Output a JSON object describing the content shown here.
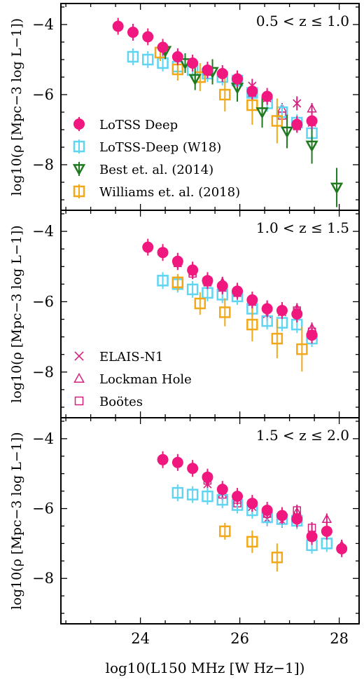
{
  "chart_data": {
    "type": "scatter",
    "x_label": "log10(L150 MHz [W Hz−1])",
    "y_label": "log10(ρ [Mpc−3 log L−1])",
    "xlim": [
      22.4,
      28.4
    ],
    "ylim": [
      -9.3,
      -3.4
    ],
    "x_ticks": [
      "24",
      "26",
      "28"
    ],
    "y_ticks": [
      "−4",
      "−6",
      "−8"
    ],
    "colors": {
      "lotss_deep": "#f0187f",
      "w18": "#5fd5f3",
      "best": "#1f7a1f",
      "williams": "#f2a818",
      "fields": "#d6207f"
    },
    "legend_series": [
      {
        "name": "LoTSS Deep",
        "marker": "filled-circle"
      },
      {
        "name": "LoTSS-Deep (W18)",
        "marker": "open-square"
      },
      {
        "name": "Best et. al. (2014)",
        "marker": "open-triangle-down"
      },
      {
        "name": "Williams et. al. (2018)",
        "marker": "open-square"
      }
    ],
    "legend_fields": [
      {
        "name": "ELAIS-N1",
        "marker": "cross"
      },
      {
        "name": "Lockman Hole",
        "marker": "open-triangle-up"
      },
      {
        "name": "Boötes",
        "marker": "open-square"
      }
    ],
    "panels": [
      {
        "z_label": "0.5  < z  ≤  1.0",
        "lotss_deep": [
          [
            23.55,
            -4.05
          ],
          [
            23.85,
            -4.22
          ],
          [
            24.15,
            -4.35
          ],
          [
            24.45,
            -4.65
          ],
          [
            24.75,
            -4.92
          ],
          [
            25.05,
            -5.1
          ],
          [
            25.35,
            -5.3
          ],
          [
            25.65,
            -5.4
          ],
          [
            25.95,
            -5.55
          ],
          [
            26.25,
            -5.9
          ],
          [
            26.55,
            -6.05
          ],
          [
            27.15,
            -6.85
          ],
          [
            27.45,
            -6.75
          ]
        ],
        "w18": [
          [
            23.85,
            -4.92
          ],
          [
            24.15,
            -5.0
          ],
          [
            24.45,
            -5.1
          ],
          [
            24.75,
            -5.2
          ],
          [
            25.05,
            -5.3
          ],
          [
            25.35,
            -5.4
          ],
          [
            25.65,
            -5.5
          ],
          [
            25.95,
            -5.6
          ],
          [
            26.25,
            -5.95
          ],
          [
            26.55,
            -6.25
          ],
          [
            26.85,
            -6.5
          ],
          [
            27.15,
            -6.8
          ],
          [
            27.45,
            -7.1
          ]
        ],
        "best": [
          [
            24.5,
            -4.75
          ],
          [
            24.9,
            -5.1
          ],
          [
            25.1,
            -5.55
          ],
          [
            25.45,
            -5.35
          ],
          [
            25.95,
            -5.8
          ],
          [
            26.45,
            -6.5
          ],
          [
            26.95,
            -7.05
          ],
          [
            27.45,
            -7.45
          ],
          [
            27.95,
            -8.65
          ]
        ],
        "williams": [
          [
            24.4,
            -4.8
          ],
          [
            24.75,
            -5.28
          ],
          [
            25.2,
            -5.5
          ],
          [
            25.7,
            -6.0
          ],
          [
            26.25,
            -6.3
          ],
          [
            26.75,
            -6.75
          ]
        ],
        "elais": [
          [
            24.75,
            -4.95
          ],
          [
            25.35,
            -5.3
          ],
          [
            25.95,
            -5.6
          ],
          [
            26.25,
            -5.75
          ],
          [
            26.55,
            -6.1
          ],
          [
            27.15,
            -6.25
          ],
          [
            27.45,
            -6.8
          ]
        ],
        "lockman": [
          [
            24.75,
            -4.9
          ],
          [
            25.35,
            -5.3
          ],
          [
            25.95,
            -5.55
          ],
          [
            26.25,
            -5.85
          ],
          [
            26.85,
            -6.4
          ],
          [
            27.45,
            -6.4
          ]
        ],
        "bootes": [
          [
            24.75,
            -4.95
          ],
          [
            25.35,
            -5.35
          ],
          [
            25.95,
            -5.65
          ],
          [
            26.25,
            -5.95
          ],
          [
            26.85,
            -6.6
          ],
          [
            27.15,
            -6.9
          ]
        ]
      },
      {
        "z_label": "1.0  < z  ≤  1.5",
        "lotss_deep": [
          [
            24.15,
            -4.45
          ],
          [
            24.45,
            -4.6
          ],
          [
            24.75,
            -4.85
          ],
          [
            25.05,
            -5.1
          ],
          [
            25.35,
            -5.4
          ],
          [
            25.65,
            -5.55
          ],
          [
            25.95,
            -5.7
          ],
          [
            26.25,
            -5.95
          ],
          [
            26.55,
            -6.2
          ],
          [
            26.85,
            -6.25
          ],
          [
            27.15,
            -6.35
          ],
          [
            27.45,
            -6.95
          ]
        ],
        "w18": [
          [
            24.45,
            -5.4
          ],
          [
            24.75,
            -5.5
          ],
          [
            25.05,
            -5.65
          ],
          [
            25.35,
            -5.75
          ],
          [
            25.65,
            -5.8
          ],
          [
            25.95,
            -5.85
          ],
          [
            26.25,
            -6.2
          ],
          [
            26.55,
            -6.55
          ],
          [
            26.85,
            -6.6
          ],
          [
            27.15,
            -6.65
          ],
          [
            27.45,
            -7.05
          ]
        ],
        "best": [],
        "williams": [
          [
            24.75,
            -5.45
          ],
          [
            25.2,
            -6.05
          ],
          [
            25.7,
            -6.3
          ],
          [
            26.25,
            -6.65
          ],
          [
            26.75,
            -7.05
          ],
          [
            27.25,
            -7.35
          ]
        ],
        "elais": [
          [
            24.75,
            -4.9
          ],
          [
            25.05,
            -5.15
          ],
          [
            25.35,
            -5.45
          ],
          [
            25.65,
            -5.6
          ],
          [
            25.95,
            -5.7
          ],
          [
            26.25,
            -6.0
          ],
          [
            26.55,
            -6.35
          ],
          [
            26.85,
            -6.3
          ],
          [
            27.15,
            -6.35
          ],
          [
            27.45,
            -6.95
          ]
        ],
        "lockman": [
          [
            24.75,
            -4.85
          ],
          [
            25.05,
            -5.05
          ],
          [
            25.35,
            -5.4
          ],
          [
            25.65,
            -5.45
          ],
          [
            25.95,
            -5.7
          ],
          [
            26.25,
            -5.95
          ],
          [
            26.55,
            -6.15
          ],
          [
            26.85,
            -6.2
          ],
          [
            27.15,
            -6.2
          ],
          [
            27.45,
            -6.75
          ]
        ],
        "bootes": [
          [
            24.75,
            -4.9
          ],
          [
            25.05,
            -5.2
          ],
          [
            25.35,
            -5.45
          ],
          [
            25.65,
            -5.6
          ],
          [
            25.95,
            -5.75
          ],
          [
            26.25,
            -6.0
          ],
          [
            26.55,
            -6.2
          ],
          [
            26.85,
            -6.25
          ],
          [
            27.15,
            -6.25
          ],
          [
            27.45,
            -6.85
          ]
        ]
      },
      {
        "z_label": "1.5  < z  ≤  2.0",
        "lotss_deep": [
          [
            24.45,
            -4.6
          ],
          [
            24.75,
            -4.68
          ],
          [
            25.05,
            -4.85
          ],
          [
            25.35,
            -5.1
          ],
          [
            25.65,
            -5.45
          ],
          [
            25.95,
            -5.65
          ],
          [
            26.25,
            -5.85
          ],
          [
            26.55,
            -6.05
          ],
          [
            26.85,
            -6.2
          ],
          [
            27.15,
            -6.3
          ],
          [
            27.45,
            -6.8
          ],
          [
            27.75,
            -6.65
          ],
          [
            28.05,
            -7.15
          ]
        ],
        "w18": [
          [
            24.75,
            -5.55
          ],
          [
            25.05,
            -5.6
          ],
          [
            25.35,
            -5.65
          ],
          [
            25.65,
            -5.75
          ],
          [
            25.95,
            -5.9
          ],
          [
            26.25,
            -6.05
          ],
          [
            26.55,
            -6.25
          ],
          [
            26.85,
            -6.3
          ],
          [
            27.15,
            -6.35
          ],
          [
            27.45,
            -7.05
          ],
          [
            27.75,
            -7.0
          ]
        ],
        "best": [],
        "williams": [
          [
            25.7,
            -6.65
          ],
          [
            26.25,
            -6.95
          ],
          [
            26.75,
            -7.4
          ]
        ],
        "elais": [
          [
            25.35,
            -5.3
          ],
          [
            25.65,
            -5.55
          ],
          [
            26.25,
            -5.95
          ],
          [
            26.55,
            -6.3
          ],
          [
            26.85,
            -6.35
          ],
          [
            27.15,
            -6.2
          ],
          [
            27.45,
            -6.75
          ]
        ],
        "lockman": [
          [
            25.35,
            -5.05
          ],
          [
            25.95,
            -5.75
          ],
          [
            26.85,
            -6.2
          ],
          [
            27.15,
            -6.1
          ],
          [
            27.75,
            -6.3
          ],
          [
            28.05,
            -7.05
          ]
        ],
        "bootes": [
          [
            25.35,
            -5.2
          ],
          [
            25.65,
            -5.6
          ],
          [
            25.95,
            -5.85
          ],
          [
            26.55,
            -6.15
          ],
          [
            26.85,
            -6.2
          ],
          [
            27.15,
            -6.05
          ],
          [
            27.45,
            -6.55
          ]
        ]
      }
    ]
  }
}
